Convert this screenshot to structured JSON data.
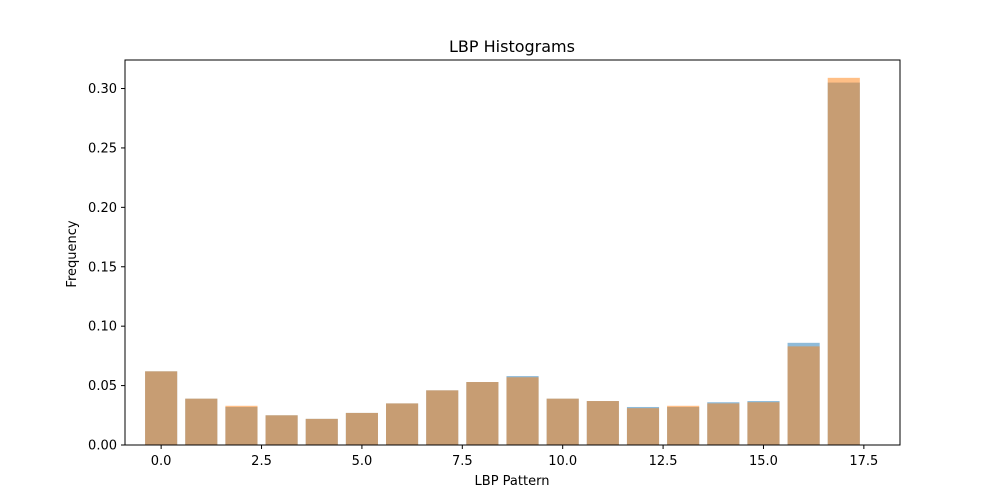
{
  "chart_data": {
    "type": "bar",
    "title": "LBP Histograms",
    "xlabel": "LBP Pattern",
    "ylabel": "Frequency",
    "xlim": [
      -0.9,
      18.4
    ],
    "ylim": [
      0,
      0.324
    ],
    "xticks": [
      "0.0",
      "2.5",
      "5.0",
      "7.5",
      "10.0",
      "12.5",
      "15.0",
      "17.5"
    ],
    "xtick_values": [
      0,
      2.5,
      5,
      7.5,
      10,
      12.5,
      15,
      17.5
    ],
    "yticks": [
      "0.00",
      "0.05",
      "0.10",
      "0.15",
      "0.20",
      "0.25",
      "0.30"
    ],
    "ytick_values": [
      0,
      0.05,
      0.1,
      0.15,
      0.2,
      0.25,
      0.3
    ],
    "grid": false,
    "legend": false,
    "bar_width": 0.8,
    "x": [
      0,
      1,
      2,
      3,
      4,
      5,
      6,
      7,
      8,
      9,
      10,
      11,
      12,
      13,
      14,
      15,
      16,
      17
    ],
    "series": [
      {
        "color": "#1f77b4",
        "opacity": 0.5,
        "values": [
          0.062,
          0.039,
          0.032,
          0.025,
          0.022,
          0.027,
          0.035,
          0.046,
          0.053,
          0.058,
          0.039,
          0.037,
          0.032,
          0.032,
          0.036,
          0.037,
          0.086,
          0.305
        ]
      },
      {
        "color": "#ff7f0e",
        "opacity": 0.5,
        "values": [
          0.062,
          0.039,
          0.033,
          0.025,
          0.022,
          0.027,
          0.035,
          0.046,
          0.053,
          0.057,
          0.039,
          0.037,
          0.031,
          0.033,
          0.035,
          0.036,
          0.083,
          0.309
        ]
      }
    ]
  }
}
